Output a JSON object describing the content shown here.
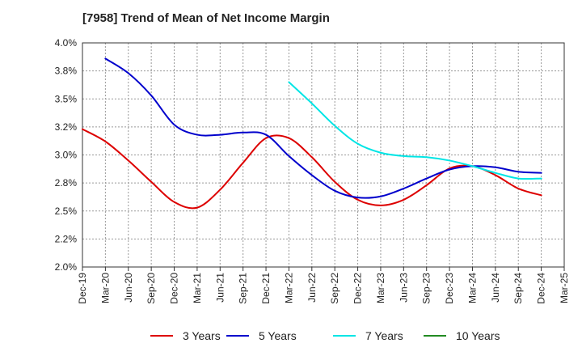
{
  "chart_data": {
    "type": "line",
    "title": "[7958]  Trend of Mean of Net Income Margin",
    "xlabel": "",
    "ylabel": "",
    "ylim": [
      2.0,
      4.0
    ],
    "y_ticks": [
      "4.0%",
      "3.8%",
      "3.5%",
      "3.2%",
      "3.0%",
      "2.8%",
      "2.5%",
      "2.2%",
      "2.0%"
    ],
    "x_ticks": [
      "Dec-19",
      "Mar-20",
      "Jun-20",
      "Sep-20",
      "Dec-20",
      "Mar-21",
      "Jun-21",
      "Sep-21",
      "Dec-21",
      "Mar-22",
      "Jun-22",
      "Sep-22",
      "Dec-22",
      "Mar-23",
      "Jun-23",
      "Sep-23",
      "Dec-23",
      "Mar-24",
      "Jun-24",
      "Sep-24",
      "Dec-24",
      "Mar-25"
    ],
    "grid": true,
    "legend_position": "bottom",
    "series": [
      {
        "name": "3 Years",
        "color": "#dd0000",
        "x": [
          "Dec-19",
          "Mar-20",
          "Jun-20",
          "Sep-20",
          "Dec-20",
          "Mar-21",
          "Jun-21",
          "Sep-21",
          "Dec-21",
          "Mar-22",
          "Jun-22",
          "Sep-22",
          "Dec-22",
          "Mar-23",
          "Jun-23",
          "Sep-23",
          "Dec-23",
          "Mar-24",
          "Jun-24",
          "Sep-24",
          "Dec-24"
        ],
        "values": [
          3.23,
          3.12,
          2.95,
          2.76,
          2.58,
          2.53,
          2.69,
          2.93,
          3.15,
          3.15,
          2.98,
          2.76,
          2.6,
          2.55,
          2.6,
          2.73,
          2.88,
          2.9,
          2.82,
          2.7,
          2.64
        ]
      },
      {
        "name": "5 Years",
        "color": "#0000cc",
        "x": [
          "Mar-20",
          "Jun-20",
          "Sep-20",
          "Dec-20",
          "Mar-21",
          "Jun-21",
          "Sep-21",
          "Dec-21",
          "Mar-22",
          "Jun-22",
          "Sep-22",
          "Dec-22",
          "Mar-23",
          "Jun-23",
          "Sep-23",
          "Dec-23",
          "Mar-24",
          "Jun-24",
          "Sep-24",
          "Dec-24"
        ],
        "values": [
          3.86,
          3.73,
          3.53,
          3.27,
          3.18,
          3.18,
          3.2,
          3.18,
          2.99,
          2.82,
          2.68,
          2.62,
          2.63,
          2.7,
          2.79,
          2.87,
          2.9,
          2.89,
          2.85,
          2.84
        ]
      },
      {
        "name": "7 Years",
        "color": "#00e5e5",
        "x": [
          "Mar-22",
          "Jun-22",
          "Sep-22",
          "Dec-22",
          "Mar-23",
          "Jun-23",
          "Sep-23",
          "Dec-23",
          "Mar-24",
          "Jun-24",
          "Sep-24",
          "Dec-24"
        ],
        "values": [
          3.65,
          3.46,
          3.26,
          3.1,
          3.02,
          2.99,
          2.98,
          2.95,
          2.9,
          2.84,
          2.79,
          2.79
        ]
      },
      {
        "name": "10 Years",
        "color": "#228b22",
        "x": [],
        "values": []
      }
    ]
  },
  "legend": [
    {
      "label": "3 Years",
      "color": "#dd0000"
    },
    {
      "label": "5 Years",
      "color": "#0000cc"
    },
    {
      "label": "7 Years",
      "color": "#00e5e5"
    },
    {
      "label": "10 Years",
      "color": "#228b22"
    }
  ]
}
